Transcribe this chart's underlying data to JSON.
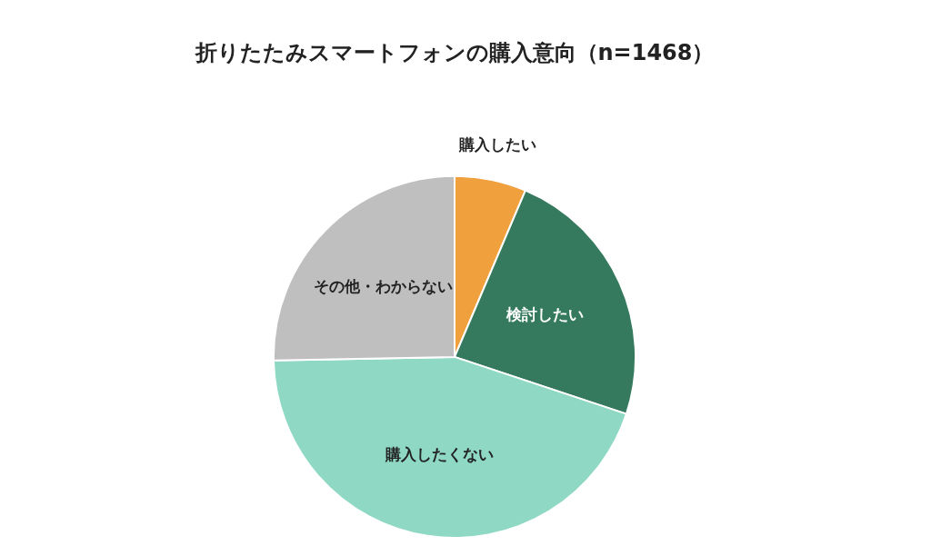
{
  "chart_data": {
    "type": "pie",
    "title": "折りたたみスマートフォンの購入意向（n=1468）",
    "categories": [
      "購入したい",
      "検討したい",
      "購入したくない",
      "その他・わからない"
    ],
    "values": [
      6.4,
      23.7,
      44.6,
      25.3
    ],
    "colors": [
      "#f0a03c",
      "#357a5e",
      "#8fd9c4",
      "#bfbfbf"
    ],
    "legend": false
  }
}
